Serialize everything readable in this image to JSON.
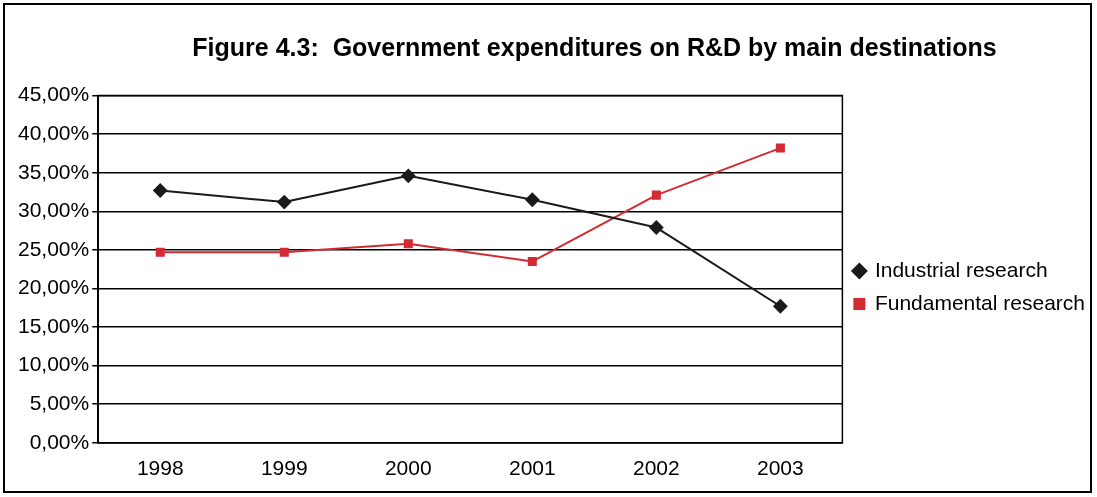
{
  "chart_data": {
    "type": "line",
    "title": "Figure 4.3:  Government expenditures on R&D by main destinations",
    "categories": [
      "1998",
      "1999",
      "2000",
      "2001",
      "2002",
      "2003"
    ],
    "series": [
      {
        "name": "Industrial research",
        "color": "#1a1a1a",
        "marker": "diamond",
        "values": [
          32.7,
          31.2,
          34.6,
          31.5,
          27.9,
          17.7
        ]
      },
      {
        "name": "Fundamental research",
        "color": "#d42a32",
        "marker": "square",
        "values": [
          24.7,
          24.7,
          25.8,
          23.5,
          32.1,
          38.2
        ]
      }
    ],
    "ylim": [
      0,
      45
    ],
    "yticks": [
      {
        "value": 0,
        "label": "0,00%"
      },
      {
        "value": 5,
        "label": "5,00%"
      },
      {
        "value": 10,
        "label": "10,00%"
      },
      {
        "value": 15,
        "label": "15,00%"
      },
      {
        "value": 20,
        "label": "20,00%"
      },
      {
        "value": 25,
        "label": "25,00%"
      },
      {
        "value": 30,
        "label": "30,00%"
      },
      {
        "value": 35,
        "label": "35,00%"
      },
      {
        "value": 40,
        "label": "40,00%"
      },
      {
        "value": 45,
        "label": "45,00%"
      }
    ],
    "grid": "y",
    "legend": "right",
    "line_style": "solid"
  }
}
